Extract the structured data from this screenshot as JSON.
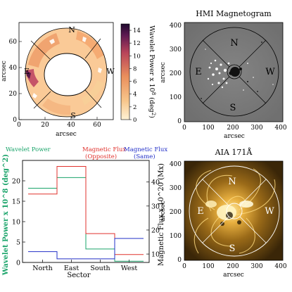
{
  "colors": {
    "wavelet": "#1aa46a",
    "flux_opposite": "#e0322d",
    "flux_same": "#2330c8",
    "frame": "#000000"
  },
  "panels": {
    "wavelet_map": {
      "xlabel": "arcsec",
      "ylabel": "arcsec",
      "xticks": [
        "0",
        "20",
        "40",
        "60"
      ],
      "yticks": [
        "0",
        "20",
        "40",
        "60"
      ],
      "sectors": {
        "north": "N",
        "east": "E",
        "south": "S",
        "west": "W"
      },
      "colorbar": {
        "label": "Wavelet Power x 10",
        "label_exponent": "8",
        "label_unit": " (deg",
        "label_unit_exp": "2",
        "label_close": ")",
        "ticks": [
          "0",
          "2",
          "4",
          "6",
          "8",
          "10",
          "12",
          "14"
        ],
        "range": [
          0,
          15
        ]
      }
    },
    "hmi": {
      "title": "HMI Magnetogram",
      "xlabel": "arcsec",
      "ylabel": "arcsec",
      "xticks": [
        "0",
        "100",
        "200",
        "300",
        "400"
      ],
      "yticks": [
        "0",
        "100",
        "200",
        "300",
        "400"
      ],
      "sectors": {
        "north": "N",
        "east": "E",
        "south": "S",
        "west": "W"
      }
    },
    "aia": {
      "title": "AIA 171Å",
      "xlabel": "arcsec",
      "ylabel": "arcsec",
      "xticks": [
        "0",
        "100",
        "200",
        "300",
        "400"
      ],
      "yticks": [
        "0",
        "100",
        "200",
        "300",
        "400"
      ],
      "sectors": {
        "north": "N",
        "east": "E",
        "south": "S",
        "west": "W"
      }
    }
  },
  "legend": {
    "wavelet": "Wavelet Power",
    "opposite_line1": "Magnetic Flux",
    "opposite_line2": "(Opposite)",
    "same_line1": "Magnetic Flux",
    "same_line2": "(Same)"
  },
  "chart_data": {
    "type": "line",
    "step": true,
    "categories": [
      "North",
      "East",
      "South",
      "West"
    ],
    "xlabel": "Sector",
    "ylabel_left": "Wavelet Power x 10^8 (deg^2)",
    "ylabel_right": "Magnetic Flux x 10^20 (Mx)",
    "left_axis": {
      "ylim": [
        0,
        25
      ],
      "ticks": [
        "0",
        "5",
        "10",
        "15",
        "20"
      ]
    },
    "right_axis": {
      "ylim": [
        6.5,
        49
      ],
      "ticks": [
        "10",
        "20",
        "30",
        "40"
      ]
    },
    "series": [
      {
        "name": "Wavelet Power",
        "axis": "left",
        "values": [
          18.2,
          20.8,
          3.3,
          0.3
        ]
      },
      {
        "name": "Magnetic Flux (Opposite)",
        "axis": "right",
        "values": [
          35.0,
          46.5,
          18.5,
          9.8
        ]
      },
      {
        "name": "Magnetic Flux (Same)",
        "axis": "right",
        "values": [
          11.0,
          8.0,
          8.0,
          16.5
        ]
      }
    ],
    "grid": false
  }
}
